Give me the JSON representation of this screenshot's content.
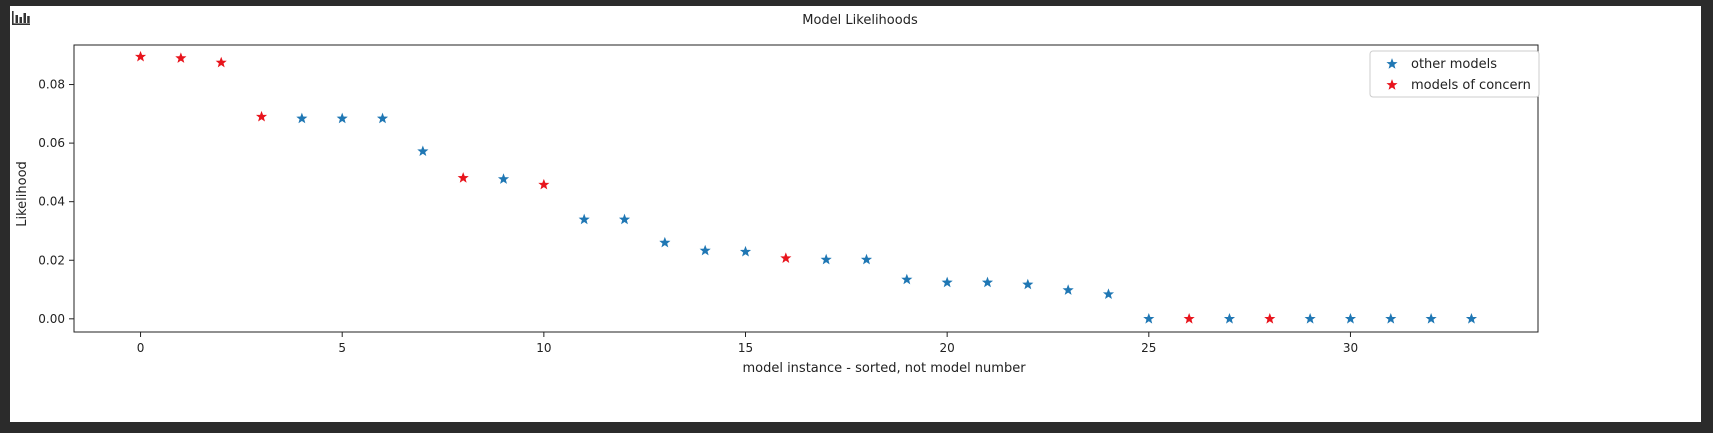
{
  "toolbar": {
    "icon": "bar-chart-icon"
  },
  "chart_data": {
    "type": "scatter",
    "title": "Model Likelihoods",
    "xlabel": "model instance - sorted, not model number",
    "ylabel": "Likelihood",
    "xlim": [
      -1.65,
      34.65
    ],
    "ylim": [
      -0.0045,
      0.0935
    ],
    "xticks": [
      0,
      5,
      10,
      15,
      20,
      25,
      30
    ],
    "xtick_labels": [
      "0",
      "5",
      "10",
      "15",
      "20",
      "25",
      "30"
    ],
    "yticks": [
      0.0,
      0.02,
      0.04,
      0.06,
      0.08
    ],
    "ytick_labels": [
      "0.00",
      "0.02",
      "0.04",
      "0.06",
      "0.08"
    ],
    "grid": false,
    "legend_position": "top-right",
    "marker": "star",
    "series": [
      {
        "name": "other models",
        "color": "#1f77b4",
        "x": [
          4,
          5,
          6,
          7,
          9,
          11,
          12,
          13,
          14,
          15,
          17,
          18,
          19,
          20,
          21,
          22,
          23,
          24,
          25,
          27,
          29,
          30,
          31,
          32,
          33
        ],
        "y": [
          0.0684,
          0.0684,
          0.0684,
          0.0572,
          0.0477,
          0.0339,
          0.0339,
          0.026,
          0.0233,
          0.0229,
          0.0202,
          0.0202,
          0.0134,
          0.0124,
          0.0124,
          0.0117,
          0.0098,
          0.0084,
          0.0,
          0.0,
          0.0,
          0.0,
          0.0,
          0.0,
          0.0
        ]
      },
      {
        "name": "models of concern",
        "color": "#e8141c",
        "x": [
          0,
          1,
          2,
          3,
          8,
          10,
          16,
          26,
          28
        ],
        "y": [
          0.0895,
          0.089,
          0.0875,
          0.069,
          0.0481,
          0.0458,
          0.0207,
          0.0,
          0.0
        ]
      }
    ]
  }
}
